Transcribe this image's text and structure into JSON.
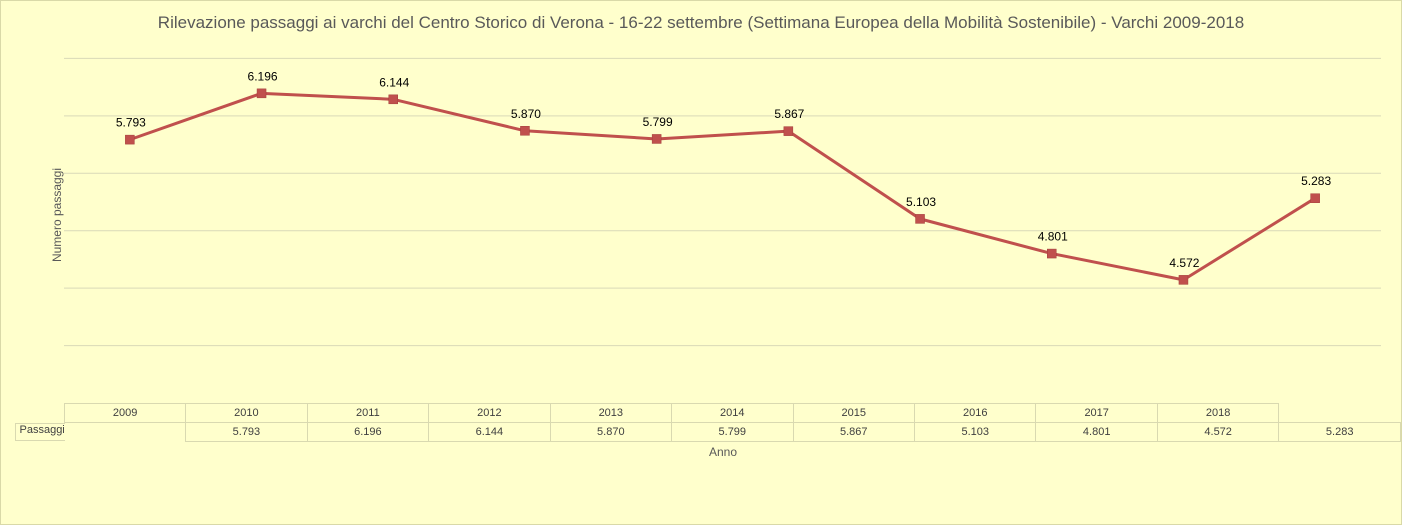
{
  "chart_data": {
    "type": "line",
    "title": "Rilevazione passaggi ai varchi del Centro Storico di Verona - 16-22 settembre (Settimana Europea della Mobilità Sostenibile) - Varchi 2009-2018",
    "xlabel": "Anno",
    "ylabel": "Numero passaggi",
    "categories": [
      "2009",
      "2010",
      "2011",
      "2012",
      "2013",
      "2014",
      "2015",
      "2016",
      "2017",
      "2018"
    ],
    "series": [
      {
        "name": "Passaggi",
        "values": [
          5793,
          6196,
          6144,
          5870,
          5799,
          5867,
          5103,
          4801,
          4572,
          5283
        ],
        "labels": [
          "5.793",
          "6.196",
          "6.144",
          "5.870",
          "5.799",
          "5.867",
          "5.103",
          "4.801",
          "4.572",
          "5.283"
        ],
        "color": "#c0504d"
      }
    ],
    "ylim": [
      3500,
      7000
    ],
    "grid": true,
    "gridlines": [
      4000,
      4500,
      5000,
      5500,
      6000,
      6500
    ],
    "data_table": true,
    "legend": "none"
  }
}
